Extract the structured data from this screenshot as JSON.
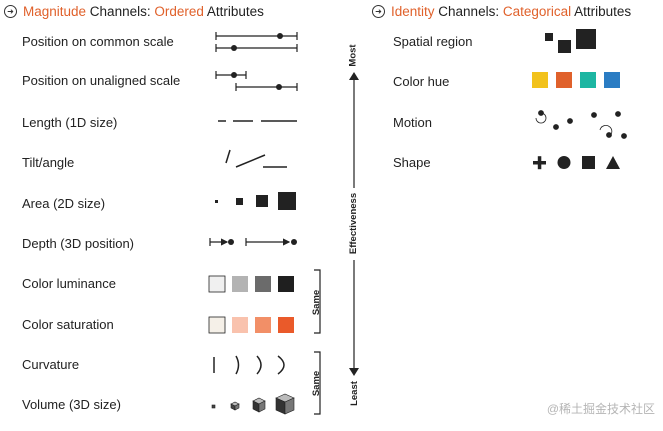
{
  "magnitude_header": {
    "part1": "Magnitude",
    "part2": " Channels: ",
    "part3": "Ordered",
    "part4": " Attributes",
    "icon": "circle-arrow-icon"
  },
  "identity_header": {
    "part1": "Identity",
    "part2": " Channels: ",
    "part3": "Categorical",
    "part4": " Attributes",
    "icon": "circle-arrow-icon"
  },
  "magnitude_channels": [
    "Position on common scale",
    "Position on unaligned scale",
    "Length (1D size)",
    "Tilt/angle",
    "Area (2D size)",
    "Depth (3D position)",
    "Color luminance",
    "Color saturation",
    "Curvature",
    "Volume (3D size)"
  ],
  "identity_channels": [
    "Spatial region",
    "Color hue",
    "Motion",
    "Shape"
  ],
  "effectiveness_axis": {
    "top": "Most",
    "middle": "Effectiveness",
    "bottom": "Least"
  },
  "same_brackets": [
    "Same",
    "Same"
  ],
  "colors": {
    "accent": "#e0612b",
    "luminance": [
      "#f0f0f0",
      "#b3b3b3",
      "#6b6b6b",
      "#1f1f1f"
    ],
    "saturation": [
      "#f5f0e8",
      "#f9c2ad",
      "#f28f67",
      "#ea5a2a"
    ],
    "hue": [
      "#f2c21c",
      "#e0612b",
      "#1db6a2",
      "#2a7cc3"
    ]
  },
  "watermark": "@稀土掘金技术社区"
}
